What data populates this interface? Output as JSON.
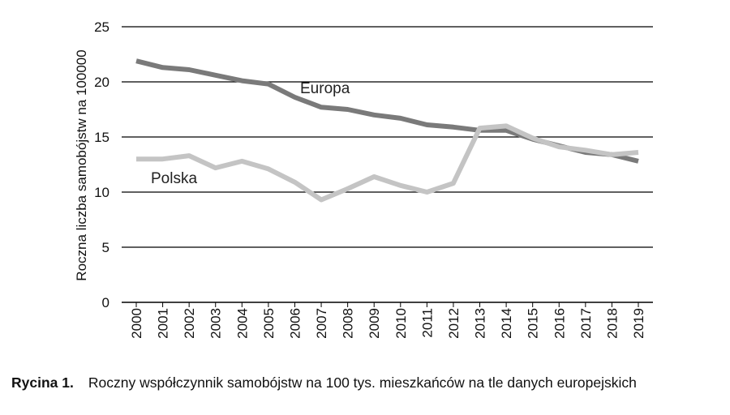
{
  "chart_data": {
    "type": "line",
    "ylabel": "Roczna liczba samobójstw na 100000",
    "xlabel": "",
    "ylim": [
      0,
      25
    ],
    "yticks": [
      0,
      5,
      10,
      15,
      20,
      25
    ],
    "grid": true,
    "x": [
      "2000",
      "2001",
      "2002",
      "2003",
      "2004",
      "2005",
      "2006",
      "2007",
      "2008",
      "2009",
      "2010",
      "2011",
      "2012",
      "2013",
      "2014",
      "2015",
      "2016",
      "2017",
      "2018",
      "2019"
    ],
    "series": [
      {
        "name": "Europa",
        "color": "#7a7a7a",
        "values": [
          21.9,
          21.3,
          21.1,
          20.6,
          20.1,
          19.8,
          18.6,
          17.7,
          17.5,
          17.0,
          16.7,
          16.1,
          15.9,
          15.6,
          15.6,
          14.8,
          14.2,
          13.6,
          13.4,
          12.8
        ]
      },
      {
        "name": "Polska",
        "color": "#c4c4c4",
        "values": [
          13.0,
          13.0,
          13.3,
          12.2,
          12.8,
          12.1,
          10.9,
          9.3,
          10.3,
          11.4,
          10.6,
          10.0,
          10.8,
          15.8,
          16.0,
          14.9,
          14.1,
          13.8,
          13.4,
          13.6
        ]
      }
    ]
  },
  "caption": {
    "label": "Rycina 1.",
    "text": "Roczny współczynnik samobójstw na 100 tys. mieszkańców na tle danych europejskich"
  }
}
